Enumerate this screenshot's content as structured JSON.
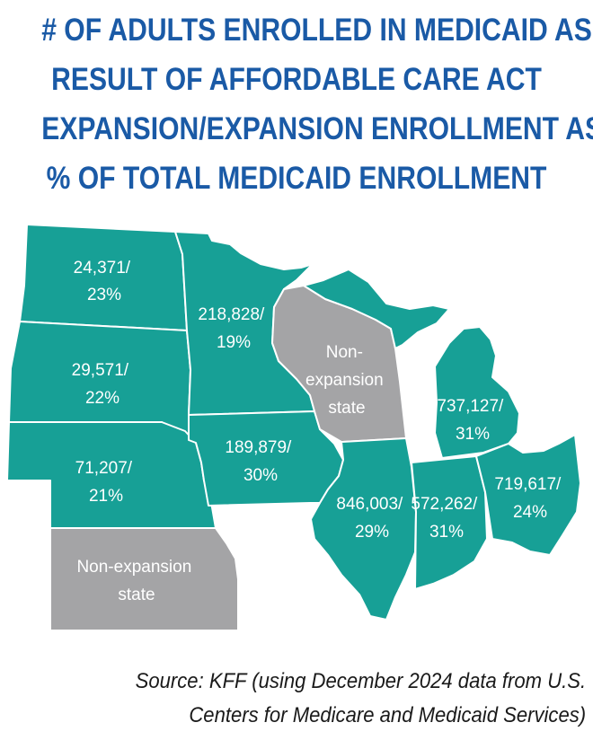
{
  "title_lines": [
    "# OF ADULTS ENROLLED IN MEDICAID AS",
    "RESULT OF AFFORDABLE CARE ACT",
    "EXPANSION/EXPANSION ENROLLMENT AS",
    "% OF TOTAL MEDICAID ENROLLMENT"
  ],
  "colors": {
    "title": "#1a5aa6",
    "expansion": "#17a096",
    "non_expansion": "#a4a4a6",
    "label": "#ffffff",
    "source": "#1a1a1a"
  },
  "states": [
    {
      "id": "north-dakota",
      "status": "expansion",
      "label_lines": [
        "24,371/",
        "23%"
      ],
      "enrolled": 24371,
      "pct": 23
    },
    {
      "id": "south-dakota",
      "status": "expansion",
      "label_lines": [
        "29,571/",
        "22%"
      ],
      "enrolled": 29571,
      "pct": 22
    },
    {
      "id": "nebraska",
      "status": "expansion",
      "label_lines": [
        "71,207/",
        "21%"
      ],
      "enrolled": 71207,
      "pct": 21
    },
    {
      "id": "kansas",
      "status": "non-expansion",
      "label_lines": [
        "Non-expansion",
        "state"
      ]
    },
    {
      "id": "minnesota",
      "status": "expansion",
      "label_lines": [
        "218,828/",
        "19%"
      ],
      "enrolled": 218828,
      "pct": 19
    },
    {
      "id": "iowa",
      "status": "expansion",
      "label_lines": [
        "189,879/",
        "30%"
      ],
      "enrolled": 189879,
      "pct": 30
    },
    {
      "id": "wisconsin",
      "status": "non-expansion",
      "label_lines": [
        "Non-",
        "expansion",
        "state"
      ]
    },
    {
      "id": "illinois",
      "status": "expansion",
      "label_lines": [
        "846,003/",
        "29%"
      ],
      "enrolled": 846003,
      "pct": 29
    },
    {
      "id": "indiana",
      "status": "expansion",
      "label_lines": [
        "572,262/",
        "31%"
      ],
      "enrolled": 572262,
      "pct": 31
    },
    {
      "id": "michigan",
      "status": "expansion",
      "label_lines": [
        "737,127/",
        "31%"
      ],
      "enrolled": 737127,
      "pct": 31
    },
    {
      "id": "ohio",
      "status": "expansion",
      "label_lines": [
        "719,617/",
        "24%"
      ],
      "enrolled": 719617,
      "pct": 24
    }
  ],
  "source_lines": [
    "Source: KFF (using December 2024 data from U.S.",
    "Centers for Medicare and Medicaid Services)"
  ]
}
